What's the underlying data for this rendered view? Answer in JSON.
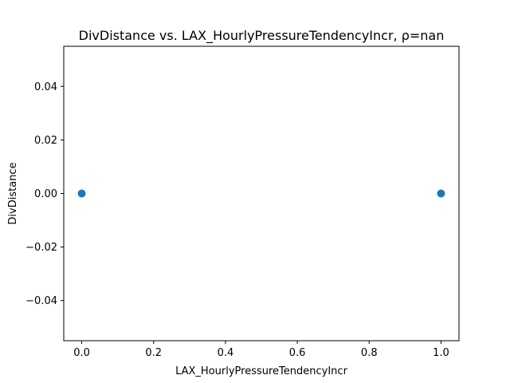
{
  "chart_data": {
    "type": "scatter",
    "title": "DivDistance vs. LAX_HourlyPressureTendencyIncr, ρ=nan",
    "xlabel": "LAX_HourlyPressureTendencyIncr",
    "ylabel": "DivDistance",
    "xlim": [
      -0.05,
      1.05
    ],
    "ylim": [
      -0.055,
      0.055
    ],
    "xticks": [
      0.0,
      0.2,
      0.4,
      0.6,
      0.8,
      1.0
    ],
    "xtick_labels": [
      "0.0",
      "0.2",
      "0.4",
      "0.6",
      "0.8",
      "1.0"
    ],
    "yticks": [
      -0.04,
      -0.02,
      0.0,
      0.02,
      0.04
    ],
    "ytick_labels": [
      "−0.04",
      "−0.02",
      "0.00",
      "0.02",
      "0.04"
    ],
    "grid": false,
    "series": [
      {
        "color": "#1f77b4",
        "x": [
          0,
          1
        ],
        "y": [
          0,
          0
        ]
      }
    ]
  }
}
